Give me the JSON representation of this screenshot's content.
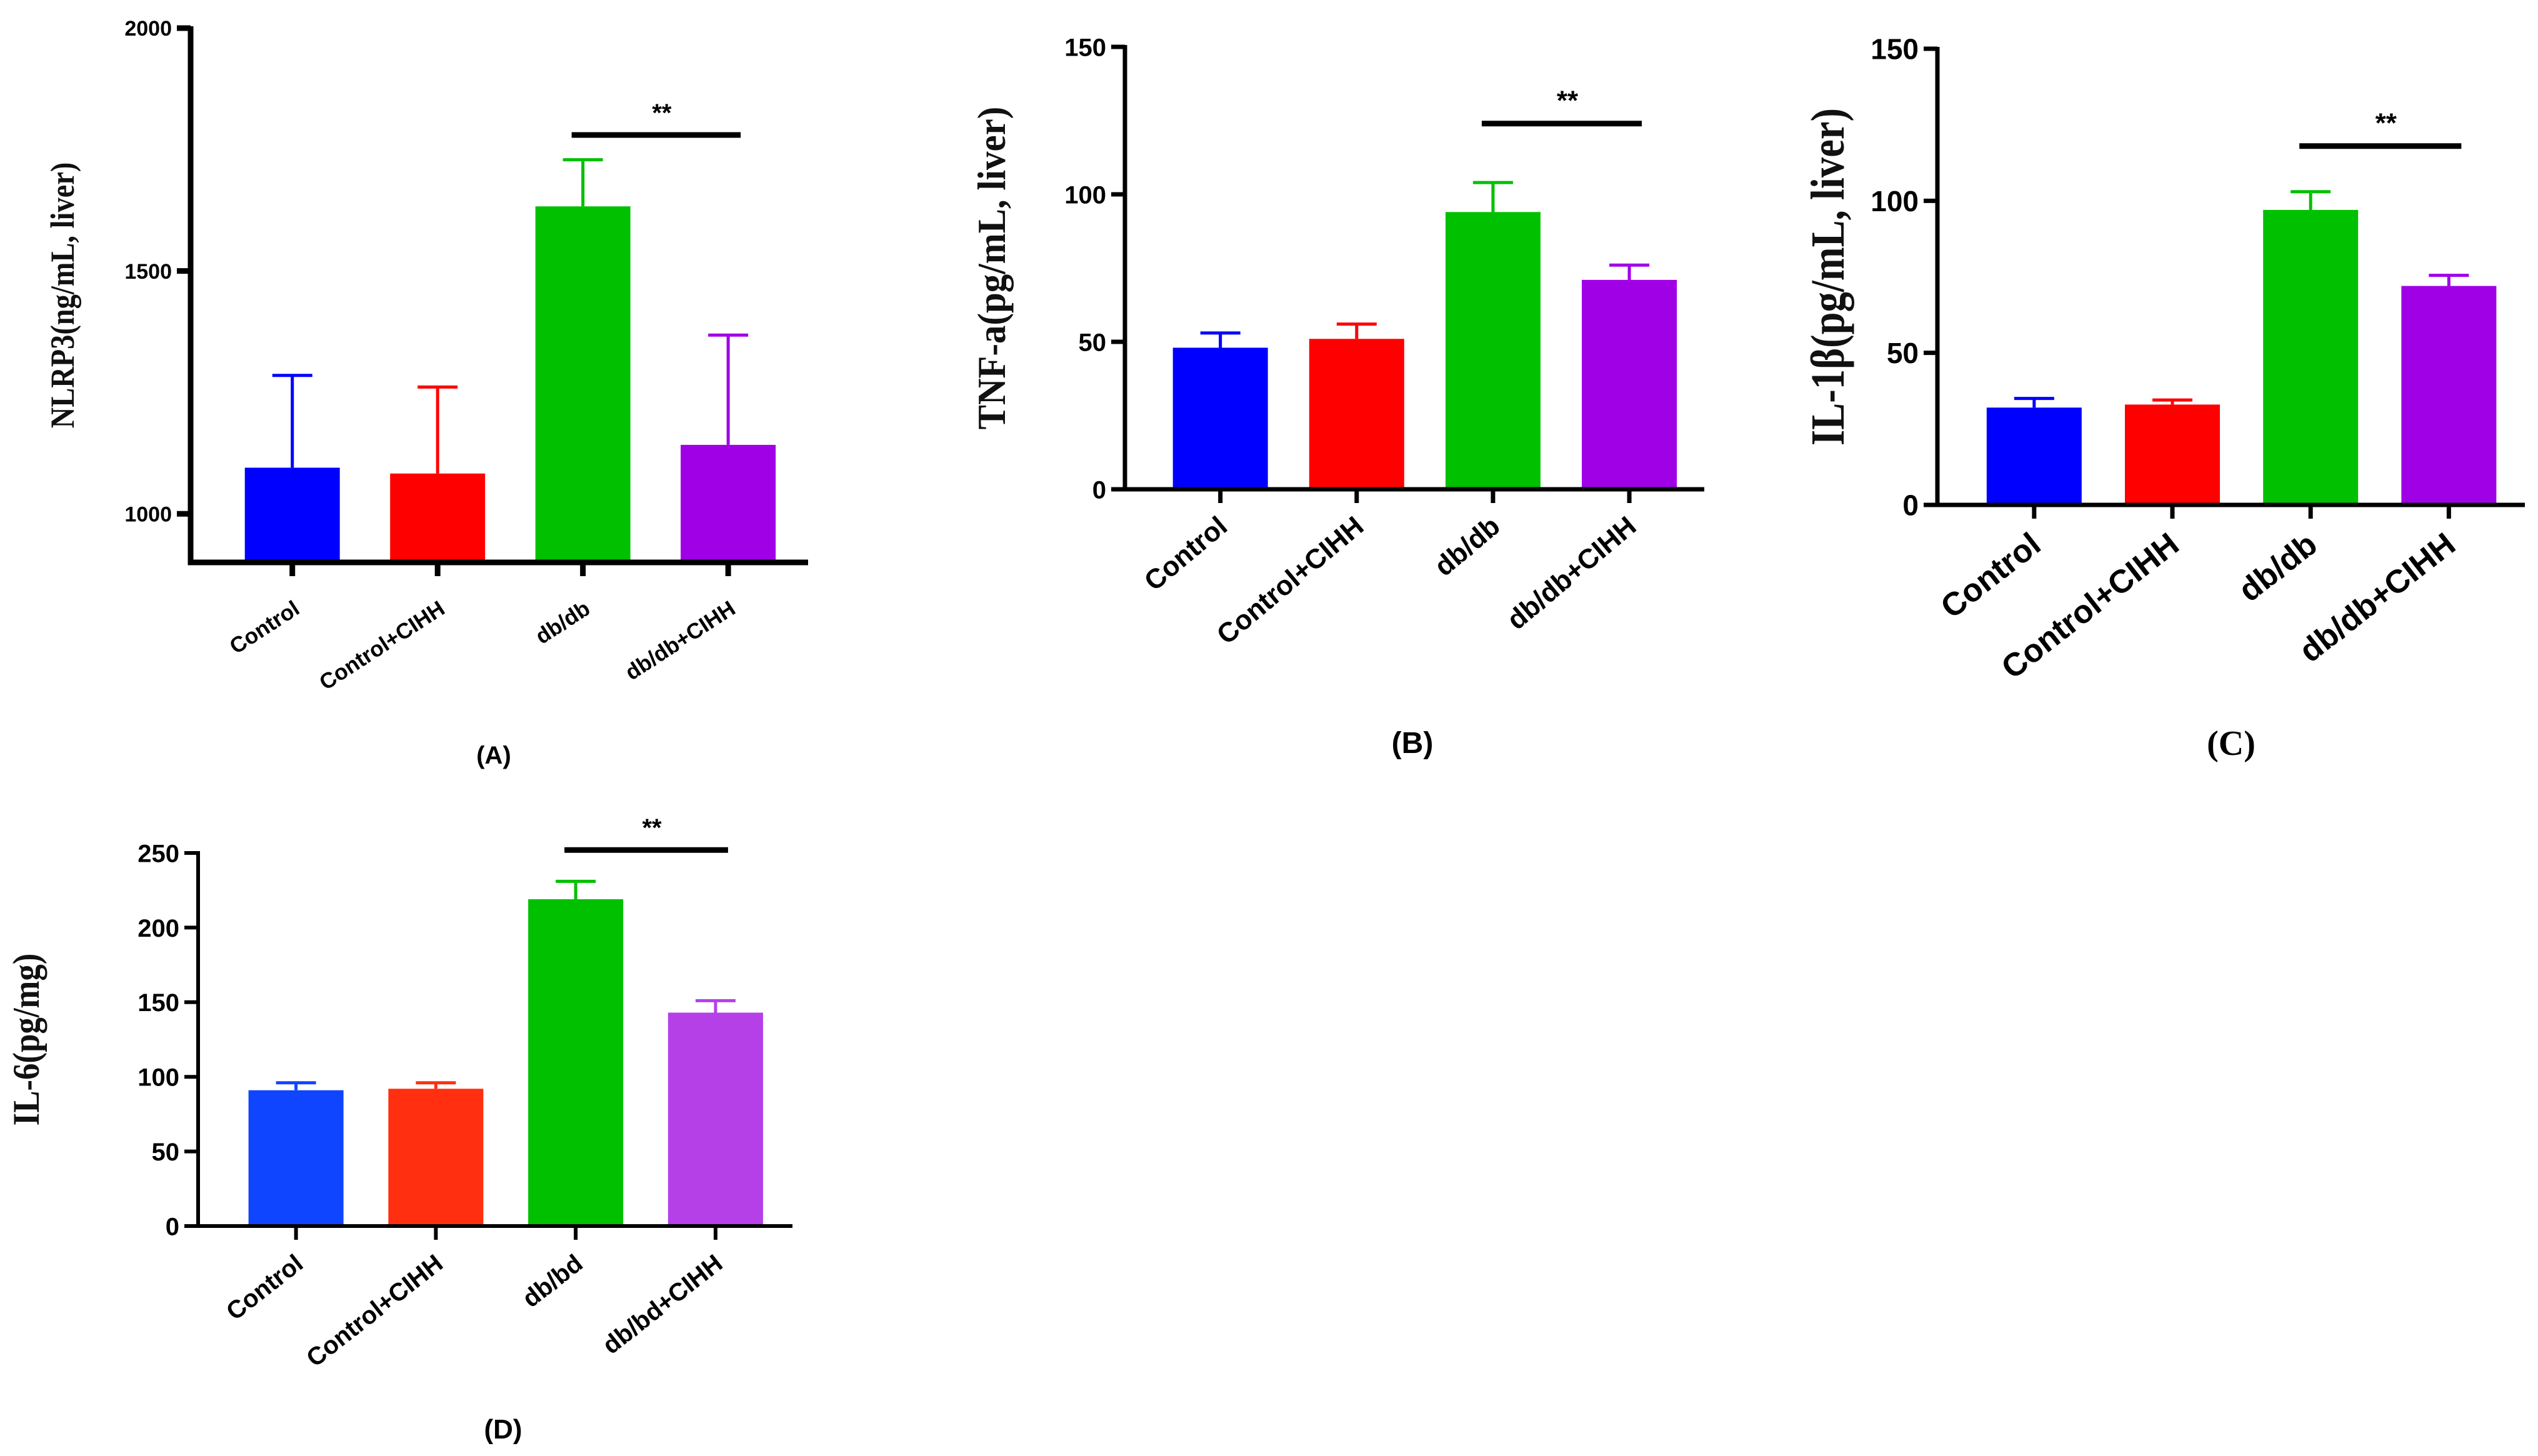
{
  "chart_data": [
    {
      "type": "bar",
      "panel_label": "(A)",
      "ylabel": "NLRP3(ng/mL,  liver)",
      "ylim": [
        900,
        2000
      ],
      "yticks": [
        "1000",
        "1500",
        "2000"
      ],
      "categories": [
        "Control",
        "Control+CIHH",
        "db/db",
        "db/db+CIHH"
      ],
      "values": [
        1095,
        1083,
        1633,
        1142
      ],
      "errors": [
        190,
        178,
        96,
        226
      ],
      "colors": [
        "#0000ff",
        "#ff0000",
        "#00c000",
        "#a000e6"
      ],
      "significance": {
        "label": "**",
        "from": 2,
        "to": 3,
        "y": 1780
      }
    },
    {
      "type": "bar",
      "panel_label": "(B)",
      "ylabel": "TNF-a(pg/mL,  liver)",
      "ylim": [
        0,
        150
      ],
      "yticks": [
        "0",
        "50",
        "100",
        "150"
      ],
      "categories": [
        "Control",
        "Control+CIHH",
        "db/db",
        "db/db+CIHH"
      ],
      "values": [
        48,
        51,
        94,
        71
      ],
      "errors": [
        5,
        5,
        10,
        5
      ],
      "colors": [
        "#0000ff",
        "#ff0000",
        "#00c000",
        "#a000e6"
      ],
      "significance": {
        "label": "**",
        "from": 2,
        "to": 3,
        "y": 124
      }
    },
    {
      "type": "bar",
      "panel_label": "(C)",
      "ylabel": "IL-1β(pg/mL,  liver)",
      "ylim": [
        0,
        150
      ],
      "yticks": [
        "0",
        "50",
        "100",
        "150"
      ],
      "categories": [
        "Control",
        "Control+CIHH",
        "db/db",
        "db/db+CIHH"
      ],
      "values": [
        32,
        33,
        97,
        72
      ],
      "errors": [
        3,
        1.5,
        6,
        3.5
      ],
      "colors": [
        "#0000ff",
        "#ff0000",
        "#00c000",
        "#a000e6"
      ],
      "significance": {
        "label": "**",
        "from": 2,
        "to": 3,
        "y": 118
      }
    },
    {
      "type": "bar",
      "panel_label": "(D)",
      "ylabel": "IL-6(pg/mg)",
      "ylim": [
        0,
        250
      ],
      "yticks": [
        "0",
        "50",
        "100",
        "150",
        "200",
        "250"
      ],
      "categories": [
        "Control",
        "Control+CIHH",
        "db/bd",
        "db/bd+CIHH"
      ],
      "values": [
        91,
        92,
        219,
        143
      ],
      "errors": [
        5,
        4,
        12,
        8
      ],
      "colors": [
        "#0f45ff",
        "#ff2f0f",
        "#00c000",
        "#b540e8"
      ],
      "significance": {
        "label": "**",
        "from": 2,
        "to": 3,
        "y": 252
      }
    }
  ]
}
